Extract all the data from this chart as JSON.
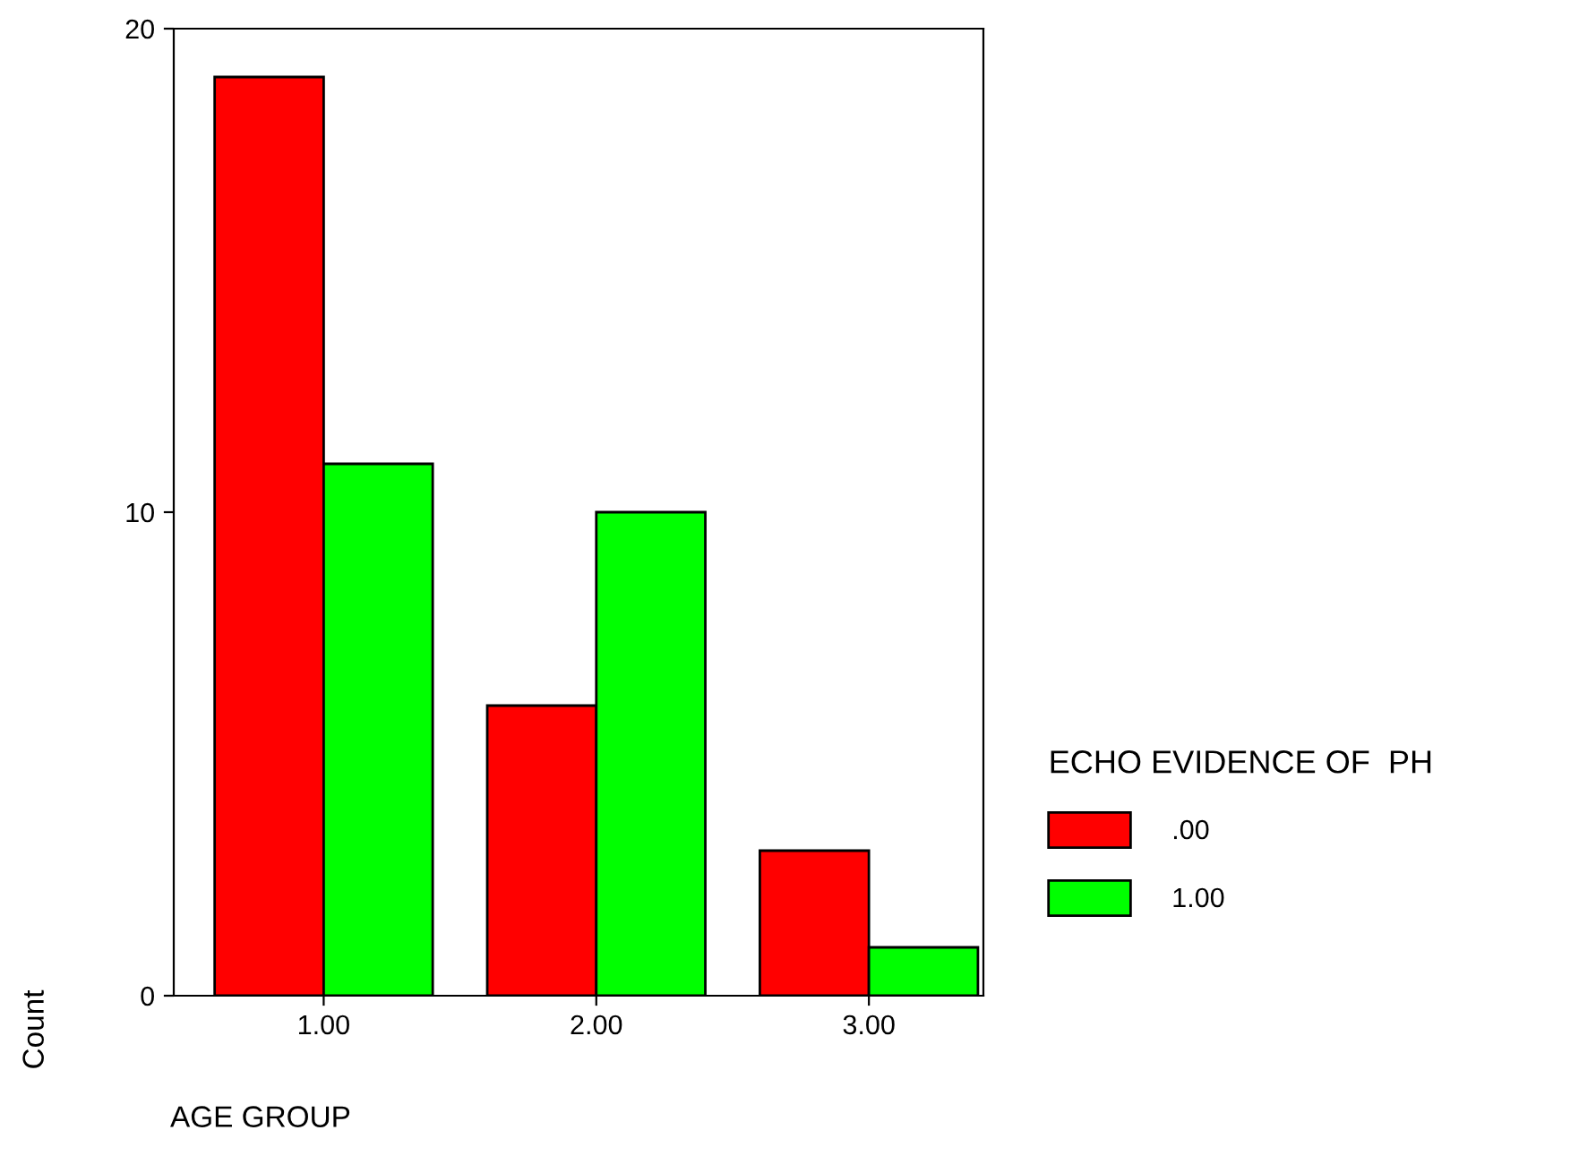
{
  "chart_data": {
    "type": "bar",
    "xlabel": "AGE GROUP",
    "ylabel": "Count",
    "legend_title": "ECHO EVIDENCE OF  PH",
    "categories": [
      "1.00",
      "2.00",
      "3.00"
    ],
    "series": [
      {
        "name": ".00",
        "color": "#ff0000",
        "values": [
          19,
          6,
          3
        ]
      },
      {
        "name": "1.00",
        "color": "#00ff00",
        "values": [
          11,
          10,
          1
        ]
      }
    ],
    "ylim": [
      0,
      20
    ],
    "yticks": [
      0,
      10,
      20
    ],
    "grid": false,
    "legend": "right"
  }
}
